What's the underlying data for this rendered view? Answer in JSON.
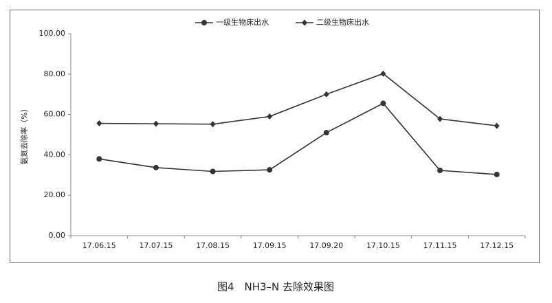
{
  "chart_data": {
    "type": "line",
    "ylabel": "氨氮去除率（%）",
    "categories": [
      "17.06.15",
      "17.07.15",
      "17.08.15",
      "17.09.15",
      "17.09.20",
      "17.10.15",
      "17.11.15",
      "17.12.15"
    ],
    "series": [
      {
        "name": "一级生物床出水",
        "color": "#333333",
        "marker": "circle",
        "values": [
          38.0,
          33.7,
          31.8,
          32.6,
          51.0,
          65.5,
          32.3,
          30.3
        ]
      },
      {
        "name": "二级生物床出水",
        "color": "#333333",
        "marker": "diamond",
        "values": [
          55.6,
          55.4,
          55.2,
          59.0,
          70.0,
          80.2,
          57.8,
          54.4
        ]
      }
    ],
    "ylim": [
      0,
      100
    ],
    "yticks": [
      {
        "value": 0,
        "label": "0.00"
      },
      {
        "value": 20,
        "label": "20.00"
      },
      {
        "value": 40,
        "label": "40.00"
      },
      {
        "value": 60,
        "label": "60.00"
      },
      {
        "value": 80,
        "label": "80.00"
      },
      {
        "value": 100,
        "label": "100.00"
      }
    ],
    "grid": false,
    "legend": "top"
  },
  "caption": "图4　NH3–N 去除效果图"
}
